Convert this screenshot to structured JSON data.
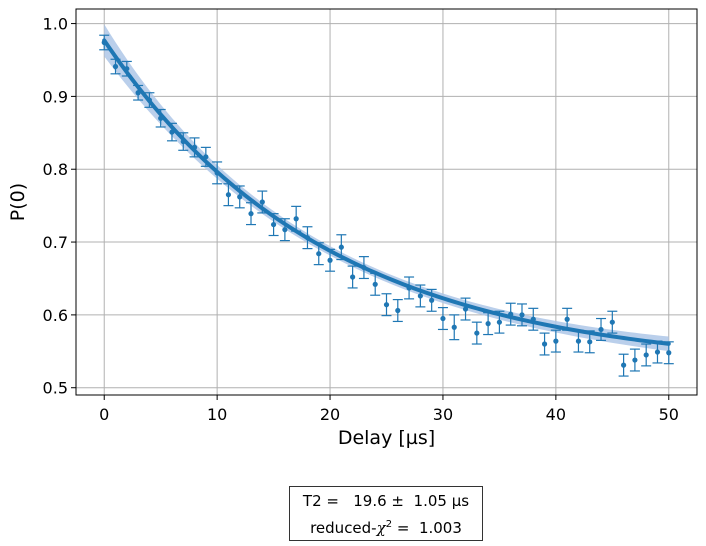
{
  "chart_data": {
    "type": "scatter",
    "title": "",
    "xlabel": "Delay [µs]",
    "ylabel": "P(0)",
    "xlim": [
      -2.5,
      52.5
    ],
    "ylim": [
      0.49,
      1.02
    ],
    "xticks": [
      "0",
      "10",
      "20",
      "30",
      "40",
      "50"
    ],
    "yticks": [
      "0.5",
      "0.6",
      "0.7",
      "0.8",
      "0.9",
      "1.0"
    ],
    "xtick_values": [
      0,
      10,
      20,
      30,
      40,
      50
    ],
    "ytick_values": [
      0.5,
      0.6,
      0.7,
      0.8,
      0.9,
      1.0
    ],
    "grid": true,
    "colors": {
      "data": "#1f77b4",
      "fit": "#1f77b4",
      "band": "#aec7e8",
      "grid": "#b0b0b0"
    },
    "series": [
      {
        "type": "scatter_errorbar",
        "x": [
          0,
          1,
          2,
          3,
          4,
          5,
          6,
          7,
          8,
          9,
          10,
          11,
          12,
          13,
          14,
          15,
          16,
          17,
          18,
          19,
          20,
          21,
          22,
          23,
          24,
          25,
          26,
          27,
          28,
          29,
          30,
          31,
          32,
          33,
          34,
          35,
          36,
          37,
          38,
          39,
          40,
          41,
          42,
          43,
          44,
          45,
          46,
          47,
          48,
          49,
          50
        ],
        "y": [
          0.974,
          0.941,
          0.938,
          0.905,
          0.895,
          0.87,
          0.851,
          0.838,
          0.83,
          0.817,
          0.795,
          0.765,
          0.762,
          0.739,
          0.755,
          0.724,
          0.717,
          0.732,
          0.706,
          0.684,
          0.675,
          0.693,
          0.652,
          0.665,
          0.642,
          0.614,
          0.606,
          0.637,
          0.626,
          0.62,
          0.595,
          0.583,
          0.608,
          0.575,
          0.588,
          0.59,
          0.601,
          0.6,
          0.594,
          0.56,
          0.564,
          0.594,
          0.564,
          0.563,
          0.58,
          0.59,
          0.531,
          0.538,
          0.545,
          0.549,
          0.548
        ],
        "yerr": [
          0.01,
          0.01,
          0.01,
          0.01,
          0.01,
          0.012,
          0.012,
          0.012,
          0.013,
          0.013,
          0.015,
          0.015,
          0.015,
          0.015,
          0.015,
          0.015,
          0.015,
          0.017,
          0.015,
          0.015,
          0.015,
          0.017,
          0.015,
          0.015,
          0.015,
          0.015,
          0.015,
          0.015,
          0.015,
          0.015,
          0.015,
          0.017,
          0.015,
          0.015,
          0.015,
          0.015,
          0.015,
          0.015,
          0.015,
          0.015,
          0.015,
          0.015,
          0.015,
          0.015,
          0.015,
          0.015,
          0.015,
          0.015,
          0.015,
          0.015,
          0.015
        ]
      },
      {
        "type": "fit",
        "model": "exponential_decay",
        "amplitude": 0.452,
        "offset": 0.525,
        "T2": 19.6,
        "x_range": [
          0,
          50
        ]
      }
    ],
    "annotation": {
      "line1": "T2 =   19.6 ±  1.05 µs",
      "line2_prefix": "reduced-",
      "line2_symbol": "χ",
      "line2_sup": "2",
      "line2_suffix": " =  1.003"
    }
  }
}
